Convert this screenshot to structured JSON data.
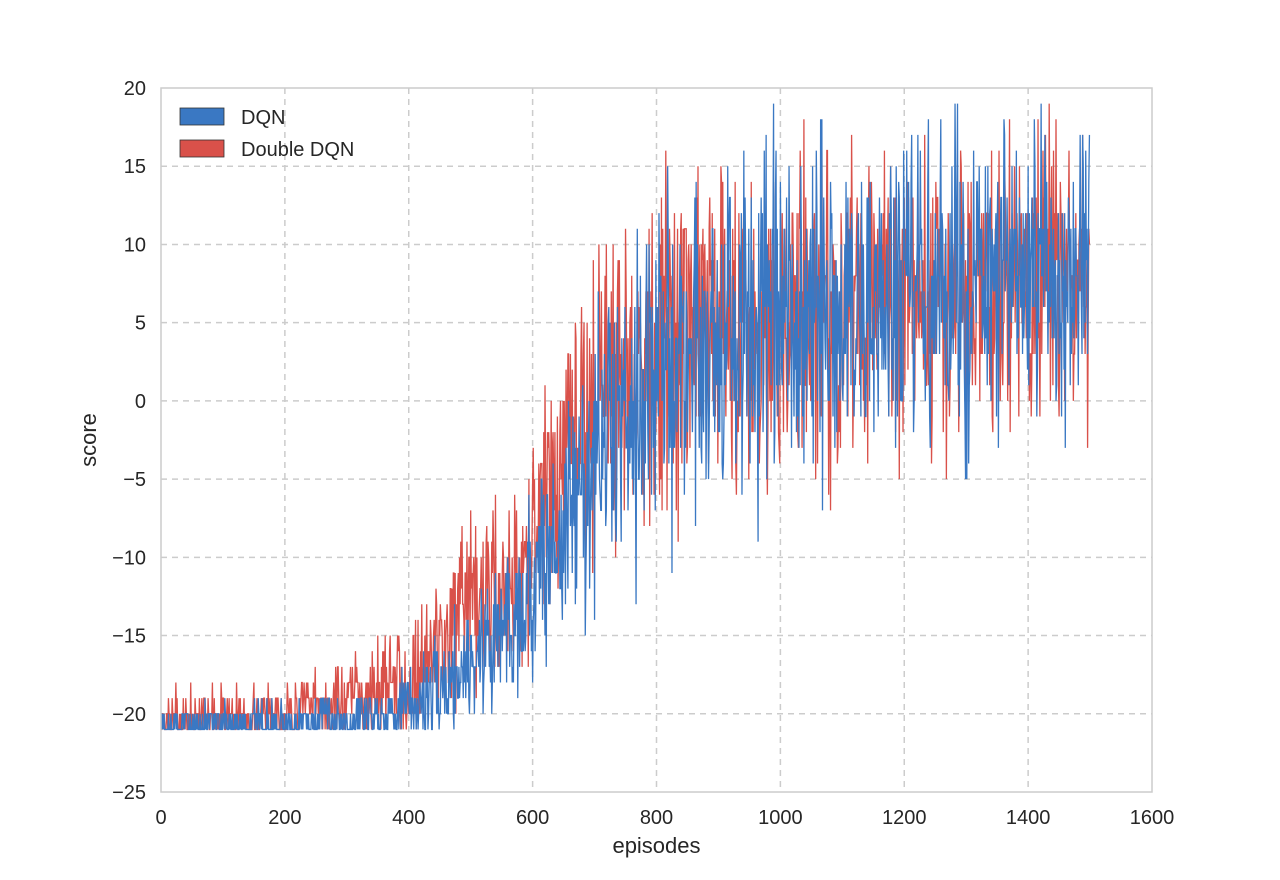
{
  "chart_data": {
    "type": "line",
    "title": "",
    "xlabel": "episodes",
    "ylabel": "score",
    "xlim": [
      0,
      1600
    ],
    "ylim": [
      -25,
      20
    ],
    "xticks": [
      0,
      200,
      400,
      600,
      800,
      1000,
      1200,
      1400,
      1600
    ],
    "yticks": [
      -25,
      -20,
      -15,
      -10,
      -5,
      0,
      5,
      10,
      15,
      20
    ],
    "xtick_labels": [
      "0",
      "200",
      "400",
      "600",
      "800",
      "1000",
      "1200",
      "1400",
      "1600"
    ],
    "ytick_labels": [
      "−25",
      "−20",
      "−15",
      "−10",
      "−5",
      "0",
      "5",
      "10",
      "15",
      "20"
    ],
    "grid": true,
    "grid_style": "dashed",
    "legend_position": "top-left",
    "episodes": 1500,
    "series": [
      {
        "name": "DQN",
        "color": "#3a78c3",
        "trend_x": [
          0,
          100,
          200,
          300,
          350,
          400,
          450,
          500,
          550,
          600,
          650,
          700,
          750,
          800,
          850,
          900,
          1000,
          1100,
          1200,
          1300,
          1400,
          1500
        ],
        "trend_y": [
          -20.8,
          -20.6,
          -20.6,
          -20.3,
          -20.0,
          -19.6,
          -18.5,
          -16.5,
          -14.5,
          -12.0,
          -8.0,
          -4.0,
          0.0,
          2.0,
          3.0,
          4.0,
          4.5,
          5.5,
          6.5,
          7.0,
          7.5,
          8.5
        ],
        "noise_x": [
          0,
          300,
          450,
          600,
          750,
          1000,
          1500
        ],
        "noise_amp": [
          0.7,
          0.9,
          1.8,
          3.5,
          5.5,
          6.5,
          5.0
        ],
        "min_y": -21,
        "max_y": 19,
        "seed": 7
      },
      {
        "name": "Double DQN",
        "color": "#d9514a",
        "trend_x": [
          0,
          100,
          200,
          300,
          350,
          400,
          450,
          500,
          550,
          600,
          650,
          700,
          750,
          800,
          850,
          900,
          1000,
          1100,
          1200,
          1300,
          1400,
          1500
        ],
        "trend_y": [
          -20.6,
          -20.2,
          -20.0,
          -19.3,
          -18.5,
          -17.5,
          -15.5,
          -13.5,
          -12.0,
          -9.5,
          -4.0,
          0.0,
          2.5,
          3.5,
          4.5,
          5.0,
          5.5,
          6.0,
          6.5,
          7.0,
          7.5,
          8.0
        ],
        "noise_x": [
          0,
          300,
          450,
          600,
          750,
          1000,
          1500
        ],
        "noise_amp": [
          0.9,
          1.3,
          2.5,
          4.0,
          5.5,
          6.0,
          5.0
        ],
        "min_y": -21,
        "max_y": 19,
        "seed": 13
      }
    ]
  }
}
